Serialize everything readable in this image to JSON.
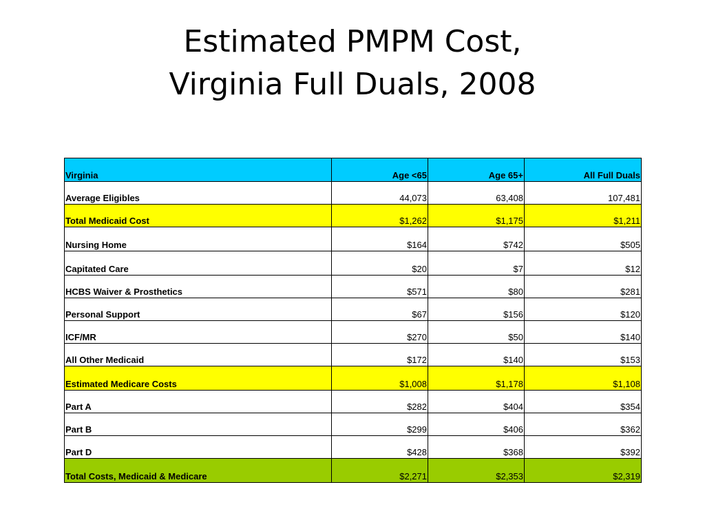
{
  "title": {
    "line1": "Estimated PMPM Cost,",
    "line2": "Virginia Full Duals, 2008"
  },
  "colors": {
    "header_bg": "#00ccff",
    "highlight_yellow": "#ffff00",
    "highlight_green": "#99cc00",
    "plain_bg": "#ffffff"
  },
  "table": {
    "headers": [
      "Virginia",
      "Age <65",
      "Age 65+",
      "All Full Duals"
    ],
    "rows": [
      {
        "label": "Average Eligibles",
        "values": [
          "44,073",
          "63,408",
          "107,481"
        ],
        "highlight": "none"
      },
      {
        "label": "Total Medicaid Cost",
        "values": [
          "$1,262",
          "$1,175",
          "$1,211"
        ],
        "highlight": "yellow"
      },
      {
        "label": "Nursing Home",
        "values": [
          "$164",
          "$742",
          "$505"
        ],
        "highlight": "none"
      },
      {
        "label": "Capitated Care",
        "values": [
          "$20",
          "$7",
          "$12"
        ],
        "highlight": "none"
      },
      {
        "label": "HCBS Waiver & Prosthetics",
        "values": [
          "$571",
          "$80",
          "$281"
        ],
        "highlight": "none"
      },
      {
        "label": "Personal Support",
        "values": [
          "$67",
          "$156",
          "$120"
        ],
        "highlight": "none"
      },
      {
        "label": "ICF/MR",
        "values": [
          "$270",
          "$50",
          "$140"
        ],
        "highlight": "none"
      },
      {
        "label": "All Other Medicaid",
        "values": [
          "$172",
          "$140",
          "$153"
        ],
        "highlight": "none"
      },
      {
        "label": "Estimated Medicare Costs",
        "values": [
          "$1,008",
          "$1,178",
          "$1,108"
        ],
        "highlight": "yellow"
      },
      {
        "label": "Part A",
        "values": [
          "$282",
          "$404",
          "$354"
        ],
        "highlight": "none"
      },
      {
        "label": "Part B",
        "values": [
          "$299",
          "$406",
          "$362"
        ],
        "highlight": "none"
      },
      {
        "label": "Part D",
        "values": [
          "$428",
          "$368",
          "$392"
        ],
        "highlight": "none"
      },
      {
        "label": "Total Costs, Medicaid & Medicare",
        "values": [
          "$2,271",
          "$2,353",
          "$2,319"
        ],
        "highlight": "green"
      }
    ]
  }
}
